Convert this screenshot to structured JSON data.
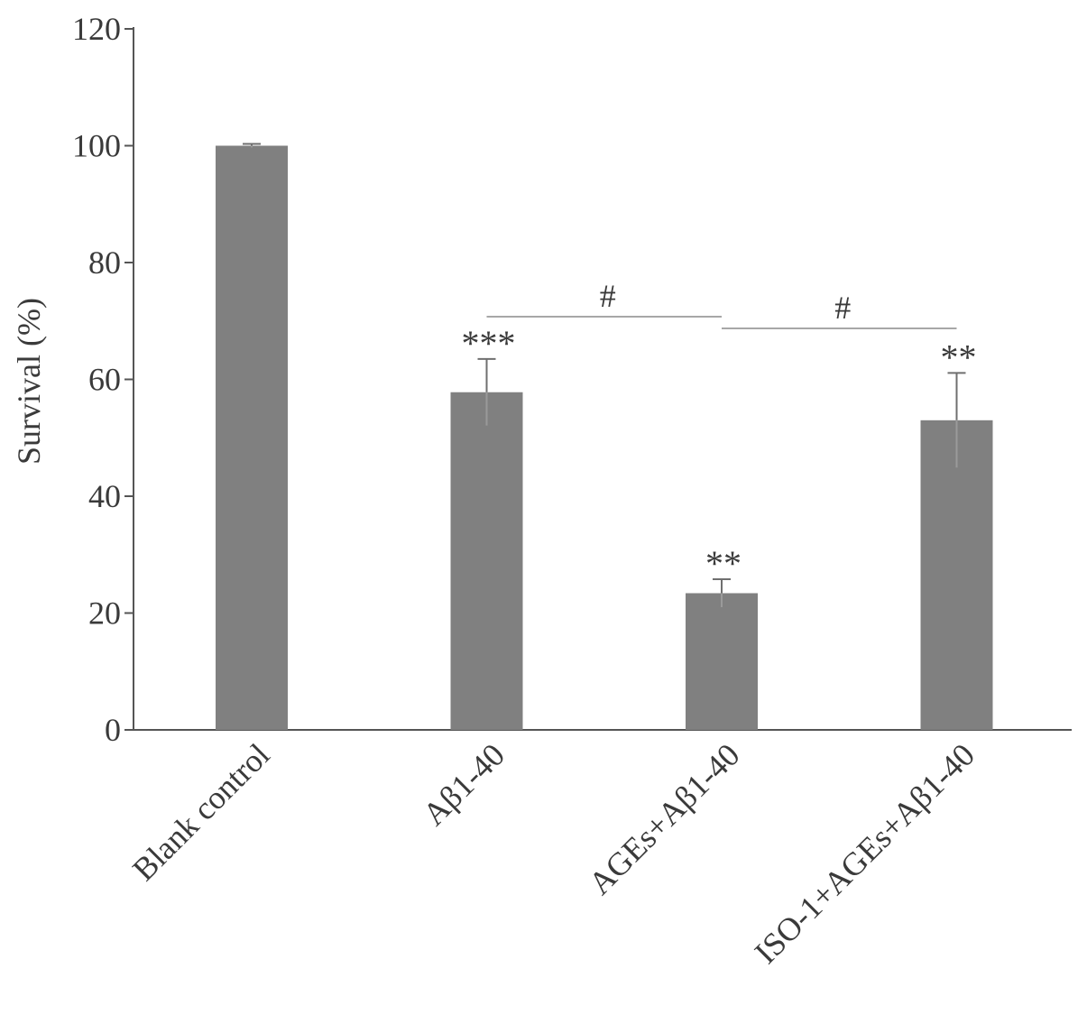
{
  "chart_data": {
    "type": "bar",
    "ylabel": "Survival (%)",
    "xlabel": "",
    "ylim": [
      0,
      120
    ],
    "yticks": [
      0,
      20,
      40,
      60,
      80,
      100,
      120
    ],
    "grid": false,
    "categories": [
      "Blank control",
      "Aβ1-40",
      "AGEs+Aβ1-40",
      "ISO-1+AGEs+Aβ1-40"
    ],
    "values": [
      100,
      57.8,
      23.4,
      53.0
    ],
    "errors": [
      0.3,
      5.7,
      2.4,
      8.1
    ],
    "significance": [
      "",
      "***",
      "**",
      "**"
    ],
    "bar_color": "#808080",
    "comparisons": [
      {
        "from": "Aβ1-40",
        "to": "AGEs+Aβ1-40",
        "label": "#"
      },
      {
        "from": "AGEs+Aβ1-40",
        "to": "ISO-1+AGEs+Aβ1-40",
        "label": "#"
      }
    ]
  }
}
